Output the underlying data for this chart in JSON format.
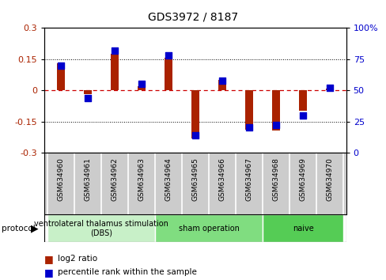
{
  "title": "GDS3972 / 8187",
  "samples": [
    "GSM634960",
    "GSM634961",
    "GSM634962",
    "GSM634963",
    "GSM634964",
    "GSM634965",
    "GSM634966",
    "GSM634967",
    "GSM634968",
    "GSM634969",
    "GSM634970"
  ],
  "log2_ratio": [
    0.13,
    -0.02,
    0.175,
    0.02,
    0.155,
    -0.23,
    0.05,
    -0.19,
    -0.195,
    -0.1,
    0.01
  ],
  "percentile_rank": [
    70,
    44,
    82,
    55,
    78,
    14,
    58,
    20,
    22,
    30,
    52
  ],
  "groups": [
    {
      "label": "ventrolateral thalamus stimulation\n(DBS)",
      "start": 0,
      "end": 3,
      "color": "#c8f0c8"
    },
    {
      "label": "sham operation",
      "start": 4,
      "end": 7,
      "color": "#80dd80"
    },
    {
      "label": "naive",
      "start": 8,
      "end": 10,
      "color": "#55cc55"
    }
  ],
  "bar_color": "#aa2200",
  "dot_color": "#0000cc",
  "ylim": [
    -0.3,
    0.3
  ],
  "y2lim": [
    0,
    100
  ],
  "yticks": [
    -0.3,
    -0.15,
    0,
    0.15,
    0.3
  ],
  "y2ticks": [
    0,
    25,
    50,
    75,
    100
  ],
  "dotted_lines_black": [
    -0.15,
    0.15
  ],
  "zero_line_color": "#cc0000",
  "background_color": "#ffffff",
  "label_bg_color": "#cccccc",
  "bar_width": 0.3,
  "dot_size": 35
}
